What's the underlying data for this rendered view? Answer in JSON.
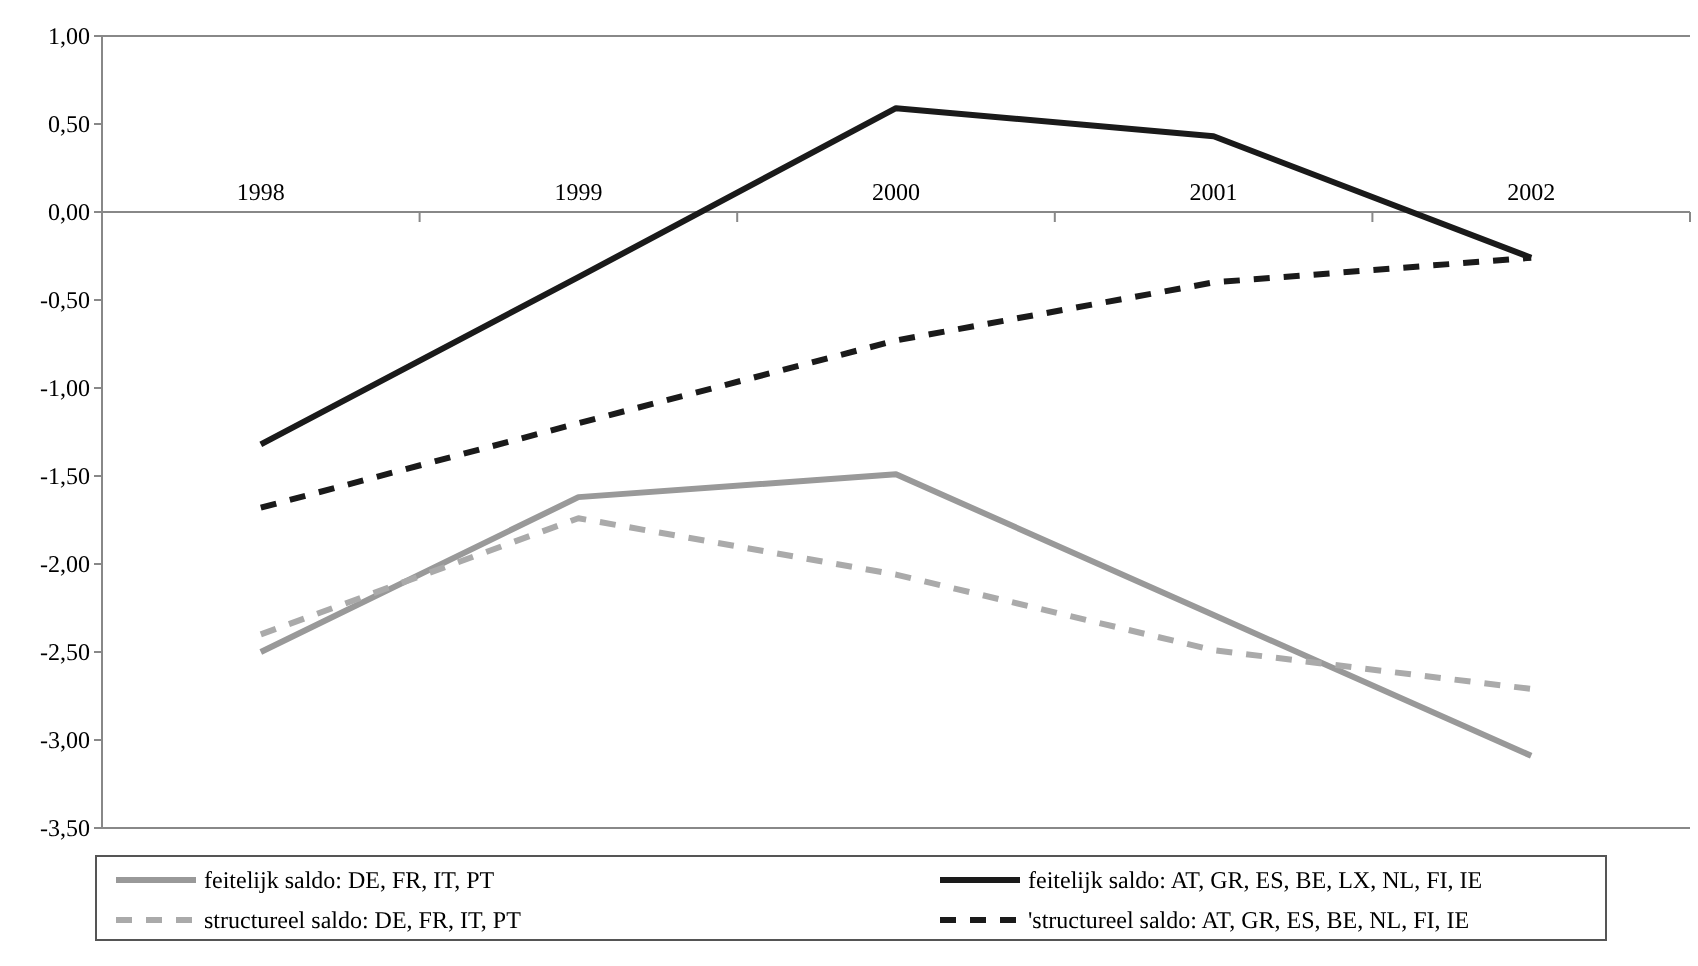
{
  "chart_data": {
    "type": "line",
    "categories": [
      "1998",
      "1999",
      "2000",
      "2001",
      "2002"
    ],
    "ylim": [
      -3.5,
      1
    ],
    "yticks": [
      {
        "value": 1,
        "label": "1,00"
      },
      {
        "value": 0.5,
        "label": "0,50"
      },
      {
        "value": 0,
        "label": "0,00"
      },
      {
        "value": -0.5,
        "label": "-0,50"
      },
      {
        "value": -1,
        "label": "-1,00"
      },
      {
        "value": -1.5,
        "label": "-1,50"
      },
      {
        "value": -2,
        "label": "-2,00"
      },
      {
        "value": -2.5,
        "label": "-2,50"
      },
      {
        "value": -3,
        "label": "-3,00"
      },
      {
        "value": -3.5,
        "label": "-3,50"
      }
    ],
    "grid": false,
    "legend": "bottom",
    "marker": "none",
    "series": [
      {
        "name": "feitelijk saldo: DE, FR, IT, PT",
        "color": "#999999",
        "line_style": "solid",
        "values": [
          -2.5,
          -1.62,
          -1.49,
          -2.29,
          -3.09
        ]
      },
      {
        "name": "feitelijk saldo: AT, GR, ES, BE, LX, NL, FI, IE",
        "color": "#1a1a1a",
        "line_style": "solid",
        "values": [
          -1.32,
          -0.37,
          0.59,
          0.43,
          -0.26
        ]
      },
      {
        "name": "structureel saldo: DE, FR, IT, PT",
        "color": "#aaaaaa",
        "line_style": "dashed",
        "values": [
          -2.4,
          -1.74,
          -2.06,
          -2.49,
          -2.71
        ]
      },
      {
        "name": "'structureel saldo: AT, GR, ES, BE, NL, FI, IE",
        "color": "#1a1a1a",
        "line_style": "dashed",
        "values": [
          -1.68,
          -1.2,
          -0.73,
          -0.4,
          -0.26
        ]
      }
    ]
  }
}
